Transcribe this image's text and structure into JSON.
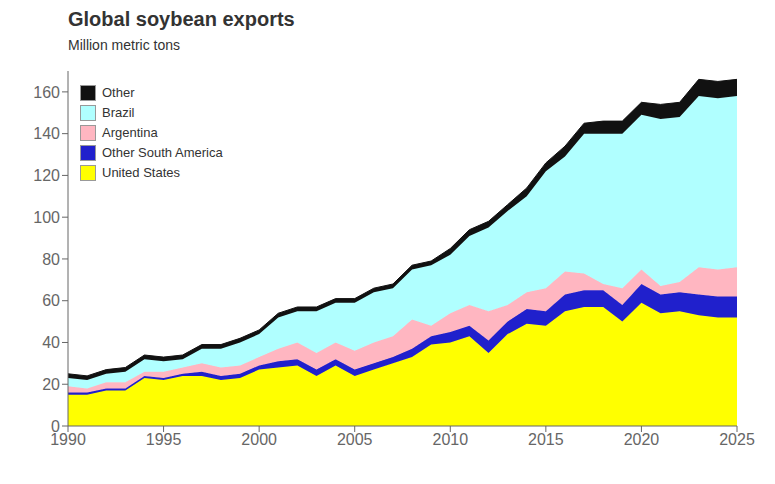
{
  "chart_data": {
    "type": "area",
    "stacked": true,
    "title": "Global soybean exports",
    "y_label": "Million metric tons",
    "x": [
      1990,
      1991,
      1992,
      1993,
      1994,
      1995,
      1996,
      1997,
      1998,
      1999,
      2000,
      2001,
      2002,
      2003,
      2004,
      2005,
      2006,
      2007,
      2008,
      2009,
      2010,
      2011,
      2012,
      2013,
      2014,
      2015,
      2016,
      2017,
      2018,
      2019,
      2020,
      2021,
      2022,
      2023,
      2024,
      2025
    ],
    "series": [
      {
        "name": "United States",
        "color": "#FFFF00",
        "values": [
          15,
          15,
          17,
          17,
          23,
          22,
          24,
          24,
          22,
          23,
          27,
          28,
          29,
          24,
          29,
          24,
          27,
          30,
          33,
          39,
          40,
          43,
          35,
          44,
          49,
          48,
          55,
          57,
          57,
          50,
          59,
          54,
          55,
          53,
          52,
          52
        ]
      },
      {
        "name": "Other South America",
        "color": "#2020CC",
        "values": [
          1,
          1,
          1,
          1,
          1,
          1,
          1,
          2,
          2,
          2,
          2,
          3,
          3,
          3,
          3,
          3,
          3,
          3,
          4,
          4,
          5,
          5,
          6,
          6,
          7,
          7,
          8,
          8,
          8,
          8,
          9,
          9,
          9,
          10,
          10,
          10
        ]
      },
      {
        "name": "Argentina",
        "color": "#FFB6C1",
        "values": [
          3,
          2,
          3,
          3,
          2,
          3,
          3,
          4,
          4,
          4,
          4,
          6,
          8,
          8,
          8,
          9,
          10,
          10,
          14,
          5,
          9,
          10,
          14,
          8,
          8,
          11,
          11,
          8,
          3,
          8,
          7,
          4,
          5,
          13,
          13,
          14
        ]
      },
      {
        "name": "Brazil",
        "color": "#B0FFFF",
        "values": [
          4,
          4,
          4,
          5,
          6,
          5,
          4,
          7,
          9,
          11,
          11,
          15,
          15,
          20,
          19,
          23,
          24,
          23,
          24,
          29,
          28,
          33,
          40,
          45,
          46,
          56,
          55,
          67,
          72,
          74,
          74,
          80,
          79,
          82,
          82,
          82
        ]
      },
      {
        "name": "Other",
        "color": "#111111",
        "values": [
          2,
          2,
          2,
          2,
          2,
          2,
          2,
          2,
          2,
          2,
          2,
          2,
          2,
          2,
          2,
          2,
          2,
          2,
          2,
          2,
          3,
          3,
          3,
          3,
          4,
          4,
          5,
          5,
          6,
          6,
          6,
          7,
          7,
          8,
          8,
          8
        ]
      }
    ],
    "xlim": [
      1990,
      2025
    ],
    "xticks": [
      1990,
      1995,
      2000,
      2005,
      2010,
      2015,
      2020,
      2025
    ],
    "ylim": [
      0,
      170
    ],
    "yticks": [
      0,
      20,
      40,
      60,
      80,
      100,
      120,
      140,
      160
    ],
    "grid": false,
    "legend": "upper left"
  }
}
